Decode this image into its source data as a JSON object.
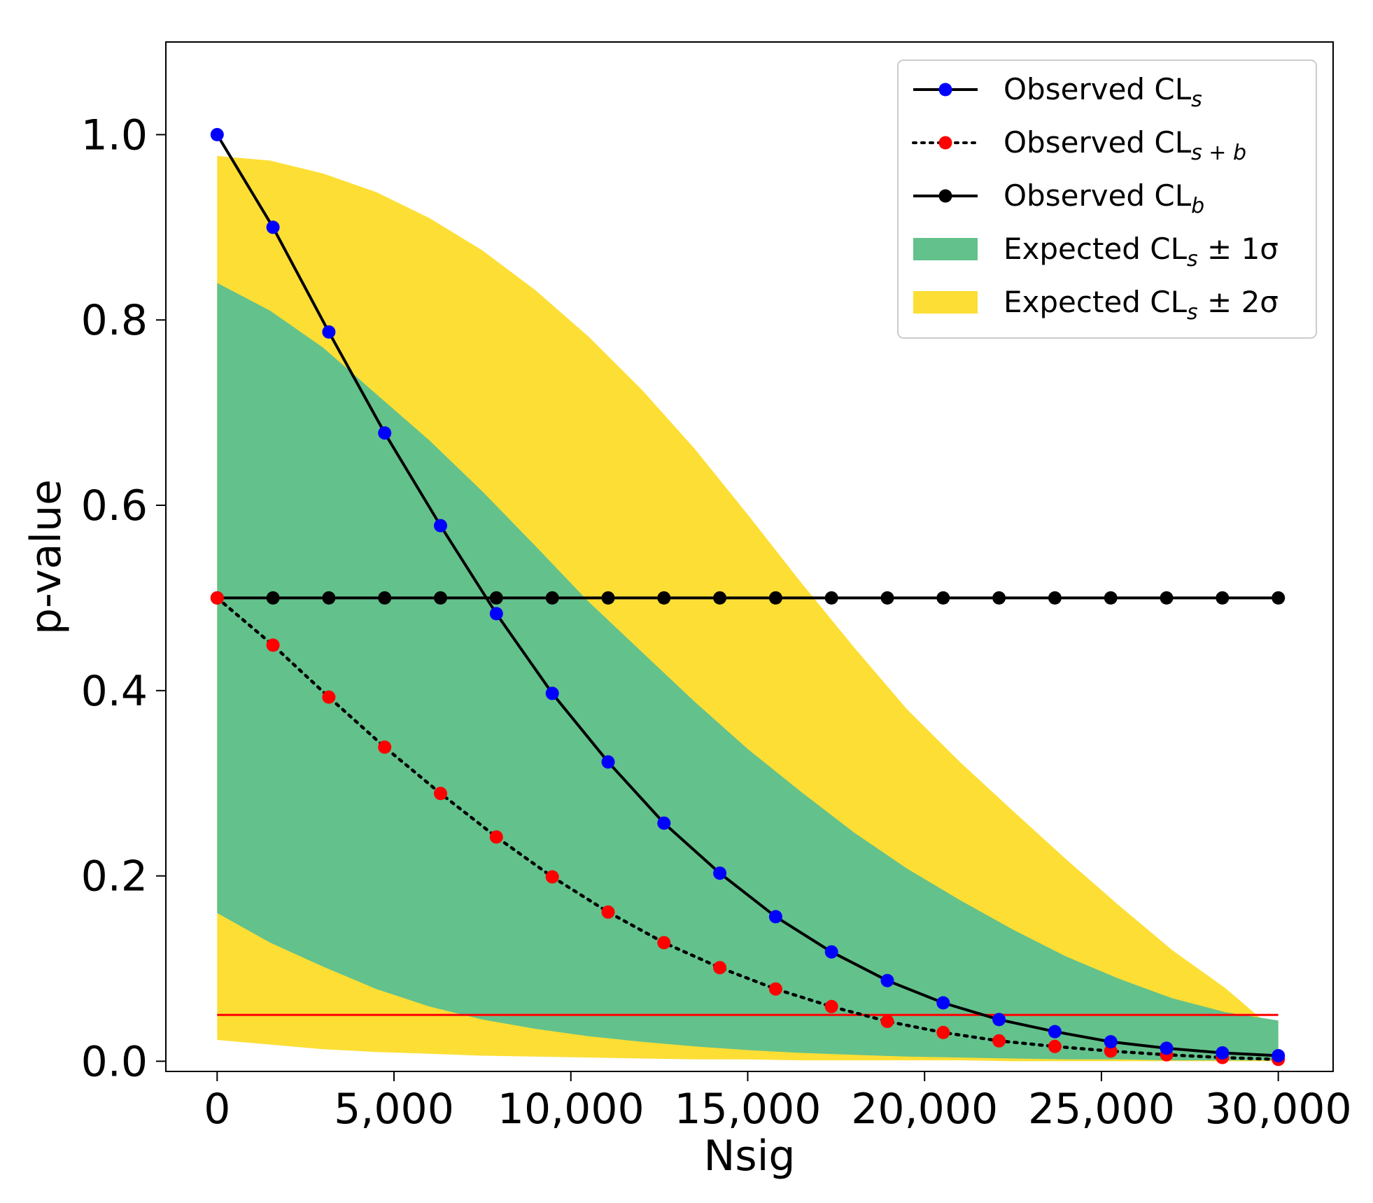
{
  "chart_data": {
    "type": "line",
    "title": "",
    "xlabel": "Nsig",
    "ylabel": "p-value",
    "xlim": [
      -1450,
      31550
    ],
    "ylim": [
      -0.011,
      1.1
    ],
    "xticks": [
      0,
      5000,
      10000,
      15000,
      20000,
      25000,
      30000
    ],
    "xtick_labels": [
      "0",
      "5,000",
      "10,000",
      "15,000",
      "20,000",
      "25,000",
      "30,000"
    ],
    "yticks": [
      0.0,
      0.2,
      0.4,
      0.6,
      0.8,
      1.0
    ],
    "ytick_labels": [
      "0.0",
      "0.2",
      "0.4",
      "0.6",
      "0.8",
      "1.0"
    ],
    "grid": false,
    "legend_position": "top-right",
    "x": [
      0,
      1579,
      3158,
      4737,
      6316,
      7895,
      9474,
      11053,
      12632,
      14211,
      15789,
      17368,
      18947,
      20526,
      22105,
      23684,
      25263,
      26842,
      28421,
      30000
    ],
    "series": [
      {
        "name": "Observed CL",
        "subscript": "s",
        "style": "solid",
        "marker_color": "#0000ff",
        "values": [
          1.0,
          0.9,
          0.787,
          0.678,
          0.578,
          0.483,
          0.397,
          0.323,
          0.257,
          0.203,
          0.156,
          0.118,
          0.087,
          0.063,
          0.045,
          0.032,
          0.021,
          0.014,
          0.009,
          0.006
        ]
      },
      {
        "name": "Observed CL",
        "subscript": "s + b",
        "style": "dotted",
        "marker_color": "#ff0000",
        "values": [
          0.5,
          0.449,
          0.393,
          0.339,
          0.289,
          0.242,
          0.199,
          0.161,
          0.128,
          0.101,
          0.078,
          0.059,
          0.043,
          0.031,
          0.022,
          0.016,
          0.011,
          0.007,
          0.004,
          0.002
        ]
      },
      {
        "name": "Observed CL",
        "subscript": "b",
        "style": "solid",
        "marker_color": "#000000",
        "values": [
          0.5,
          0.5,
          0.5,
          0.5,
          0.5,
          0.5,
          0.5,
          0.5,
          0.5,
          0.5,
          0.5,
          0.5,
          0.5,
          0.5,
          0.5,
          0.5,
          0.5,
          0.5,
          0.5,
          0.5
        ]
      }
    ],
    "bands": [
      {
        "name": "Expected CL",
        "subscript": "s",
        "suffix": " ± 2σ",
        "color": "#fdde34",
        "upper": [
          0.977,
          0.972,
          0.958,
          0.938,
          0.91,
          0.875,
          0.832,
          0.782,
          0.725,
          0.661,
          0.59,
          0.517,
          0.447,
          0.38,
          0.323,
          0.27,
          0.218,
          0.168,
          0.12,
          0.079,
          0.03
        ],
        "lower": [
          0.023,
          0.018,
          0.013,
          0.01,
          0.008,
          0.006,
          0.005,
          0.004,
          0.003,
          0.002,
          0.002,
          0.001,
          0.001,
          0.001,
          0.001,
          0.0,
          0.0,
          0.0,
          0.0,
          0.0,
          0.0
        ]
      },
      {
        "name": "Expected CL",
        "subscript": "s",
        "suffix": " ± 1σ",
        "color": "#63c18c",
        "upper": [
          0.84,
          0.81,
          0.77,
          0.72,
          0.67,
          0.615,
          0.556,
          0.496,
          0.442,
          0.388,
          0.337,
          0.291,
          0.247,
          0.208,
          0.174,
          0.142,
          0.113,
          0.089,
          0.068,
          0.053,
          0.044
        ],
        "lower": [
          0.16,
          0.128,
          0.102,
          0.078,
          0.059,
          0.045,
          0.035,
          0.027,
          0.021,
          0.016,
          0.012,
          0.009,
          0.007,
          0.005,
          0.004,
          0.003,
          0.002,
          0.002,
          0.001,
          0.001,
          0.001
        ]
      }
    ],
    "band_x": [
      0,
      1500,
      3000,
      4500,
      6000,
      7500,
      9000,
      10500,
      12000,
      13500,
      15000,
      16500,
      18000,
      19500,
      21000,
      22500,
      24000,
      25500,
      27000,
      28500,
      30000
    ],
    "hlines": [
      {
        "name": "threshold-line",
        "y": 0.05,
        "color": "#ff0000",
        "x_range": [
          0,
          30000
        ]
      }
    ],
    "legend_order": [
      "series.0",
      "series.1",
      "series.2",
      "bands.1",
      "bands.0"
    ]
  }
}
